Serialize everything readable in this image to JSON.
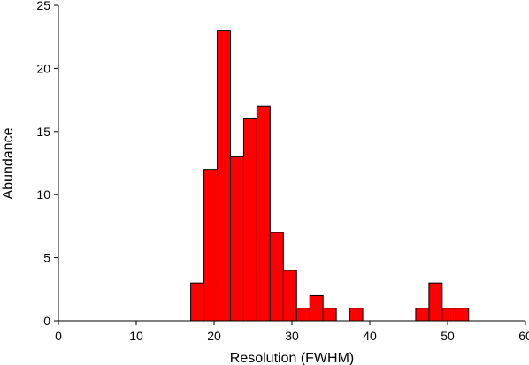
{
  "chart_data": {
    "type": "bar",
    "subtype": "histogram",
    "xlabel": "Resolution (FWHM)",
    "ylabel": "Abundance",
    "xlim": [
      0,
      60
    ],
    "ylim": [
      0,
      25
    ],
    "x_ticks": [
      0,
      10,
      20,
      30,
      40,
      50,
      60
    ],
    "y_ticks": [
      0,
      5,
      10,
      15,
      20,
      25
    ],
    "grid": false,
    "legend": "none",
    "bin_width": 1.7,
    "bins": [
      {
        "start": 17.0,
        "count": 3
      },
      {
        "start": 18.7,
        "count": 12
      },
      {
        "start": 20.4,
        "count": 23
      },
      {
        "start": 22.1,
        "count": 13
      },
      {
        "start": 23.8,
        "count": 16
      },
      {
        "start": 25.5,
        "count": 17
      },
      {
        "start": 27.2,
        "count": 7
      },
      {
        "start": 28.9,
        "count": 4
      },
      {
        "start": 30.6,
        "count": 1
      },
      {
        "start": 32.3,
        "count": 2
      },
      {
        "start": 34.0,
        "count": 1
      },
      {
        "start": 35.7,
        "count": 0
      },
      {
        "start": 37.4,
        "count": 1
      },
      {
        "start": 39.1,
        "count": 0
      },
      {
        "start": 40.8,
        "count": 0
      },
      {
        "start": 42.5,
        "count": 0
      },
      {
        "start": 44.2,
        "count": 0
      },
      {
        "start": 45.9,
        "count": 1
      },
      {
        "start": 47.6,
        "count": 3
      },
      {
        "start": 49.3,
        "count": 1
      },
      {
        "start": 51.0,
        "count": 1
      }
    ],
    "colors": {
      "bar_fill": "#ff0000",
      "bar_stroke": "#000000",
      "axis": "#000000"
    }
  }
}
